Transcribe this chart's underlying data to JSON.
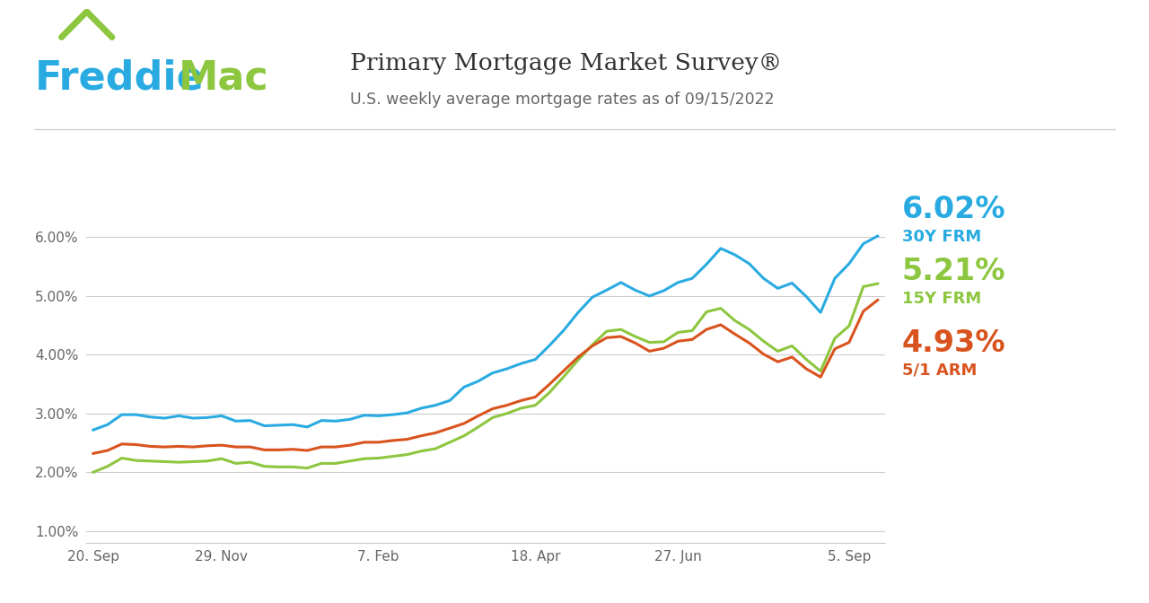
{
  "title": "Primary Mortgage Market Survey®",
  "subtitle": "U.S. weekly average mortgage rates as of 09/15/2022",
  "title_color": "#333333",
  "subtitle_color": "#666666",
  "bg_color": "#ffffff",
  "grid_color": "#cccccc",
  "x_tick_labels": [
    "20. Sep",
    "29. Nov",
    "7. Feb",
    "18. Apr",
    "27. Jun",
    "5. Sep"
  ],
  "y_tick_labels": [
    "1.00%",
    "2.00%",
    "3.00%",
    "4.00%",
    "5.00%",
    "6.00%"
  ],
  "y_ticks": [
    1.0,
    2.0,
    3.0,
    4.0,
    5.0,
    6.0
  ],
  "ylim": [
    0.8,
    6.6
  ],
  "label_30y": "6.02%",
  "label_15y": "5.21%",
  "label_arm": "4.93%",
  "color_30y": "#29ABE2",
  "color_15y": "#8DC63F",
  "color_arm": "#D9531E",
  "freddie_blue": "#29ABE2",
  "freddie_green": "#8DC63F",
  "line_width": 2.2,
  "x_tick_indices": [
    0,
    9,
    20,
    31,
    41,
    53
  ],
  "n_points": 56,
  "y30_data": [
    2.72,
    2.81,
    2.98,
    2.98,
    2.94,
    2.92,
    2.96,
    2.92,
    2.93,
    2.96,
    2.87,
    2.88,
    2.79,
    2.8,
    2.81,
    2.77,
    2.88,
    2.87,
    2.9,
    2.97,
    2.96,
    2.98,
    3.01,
    3.09,
    3.14,
    3.22,
    3.45,
    3.55,
    3.69,
    3.76,
    3.85,
    3.92,
    4.16,
    4.42,
    4.72,
    4.98,
    5.1,
    5.23,
    5.1,
    5.0,
    5.09,
    5.23,
    5.3,
    5.54,
    5.81,
    5.7,
    5.55,
    5.3,
    5.13,
    5.22,
    4.99,
    4.72,
    5.3,
    5.55,
    5.89,
    6.02
  ],
  "y15_data": [
    2.0,
    2.1,
    2.24,
    2.2,
    2.19,
    2.18,
    2.17,
    2.18,
    2.19,
    2.23,
    2.15,
    2.17,
    2.1,
    2.09,
    2.09,
    2.07,
    2.15,
    2.15,
    2.19,
    2.23,
    2.24,
    2.27,
    2.3,
    2.36,
    2.4,
    2.51,
    2.62,
    2.77,
    2.93,
    3.0,
    3.09,
    3.14,
    3.36,
    3.63,
    3.91,
    4.17,
    4.4,
    4.43,
    4.31,
    4.21,
    4.22,
    4.38,
    4.41,
    4.73,
    4.79,
    4.58,
    4.43,
    4.23,
    4.06,
    4.15,
    3.92,
    3.72,
    4.28,
    4.49,
    5.16,
    5.21
  ],
  "yarm_data": [
    2.32,
    2.37,
    2.48,
    2.47,
    2.44,
    2.43,
    2.44,
    2.43,
    2.45,
    2.46,
    2.43,
    2.43,
    2.38,
    2.38,
    2.39,
    2.37,
    2.43,
    2.43,
    2.46,
    2.51,
    2.51,
    2.54,
    2.56,
    2.62,
    2.67,
    2.75,
    2.83,
    2.96,
    3.08,
    3.14,
    3.22,
    3.28,
    3.5,
    3.73,
    3.96,
    4.15,
    4.29,
    4.31,
    4.2,
    4.06,
    4.11,
    4.23,
    4.26,
    4.43,
    4.51,
    4.35,
    4.2,
    4.01,
    3.88,
    3.96,
    3.76,
    3.62,
    4.1,
    4.21,
    4.74,
    4.93
  ]
}
